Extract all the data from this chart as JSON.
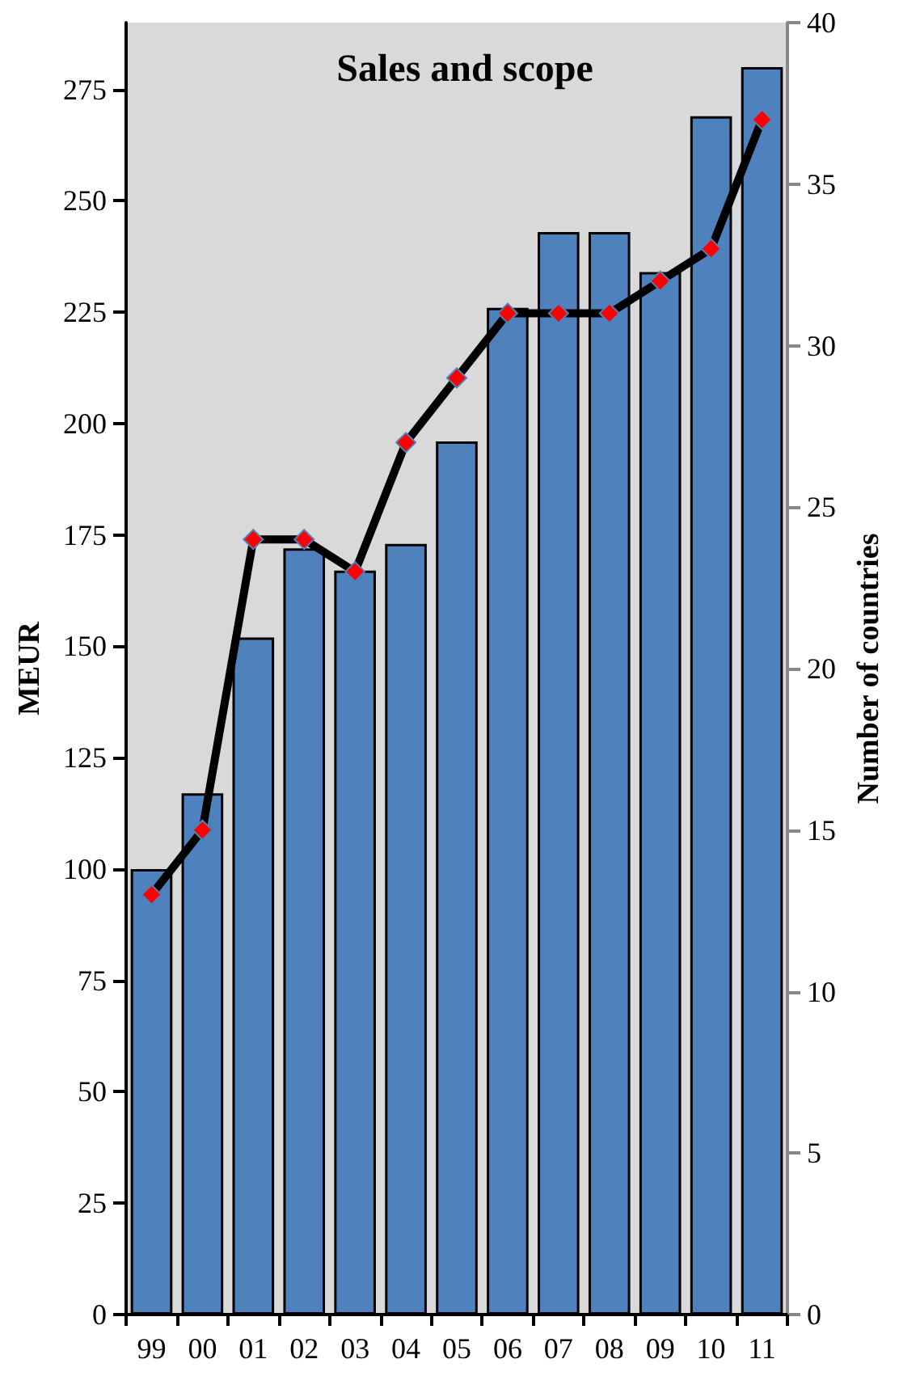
{
  "chart_data": {
    "type": "bar",
    "title": "Sales and scope",
    "ylabel": "MEUR",
    "y2label": "Number of countries",
    "categories": [
      "99",
      "00",
      "01",
      "02",
      "03",
      "04",
      "05",
      "06",
      "07",
      "08",
      "09",
      "10",
      "11"
    ],
    "series": [
      {
        "color": "#4f81bd",
        "values": [
          100,
          117,
          152,
          172,
          167,
          173,
          196,
          226,
          243,
          243,
          234,
          269,
          280
        ]
      },
      {
        "type": "line",
        "axis": "y2",
        "color": "#000000",
        "values": [
          13,
          15,
          24,
          24,
          23,
          27,
          29,
          31,
          31,
          31,
          32,
          33,
          37
        ]
      }
    ],
    "ylim": [
      0,
      290
    ],
    "yticks": [
      0,
      25,
      50,
      75,
      100,
      125,
      150,
      175,
      200,
      225,
      250,
      275
    ],
    "y2lim": [
      0,
      40
    ],
    "y2ticks": [
      0,
      5,
      10,
      15,
      20,
      25,
      30,
      35,
      40
    ],
    "grid": false,
    "marker": "diamond",
    "line_style": "solid"
  }
}
